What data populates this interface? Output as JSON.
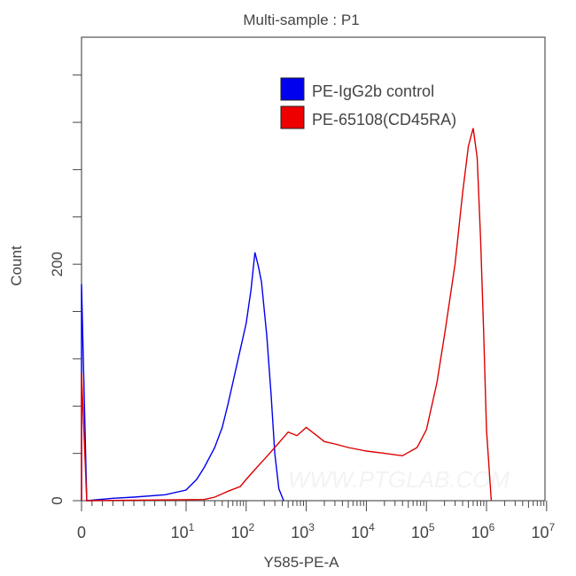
{
  "chart_data": {
    "type": "line",
    "title": "Multi-sample : P1",
    "xlabel": "Y585-PE-A",
    "ylabel": "Count",
    "x_scale": "biexponential (linear near 0, log above 10)",
    "x_ticks": [
      {
        "value": 0,
        "base": "0",
        "exp": ""
      },
      {
        "value": 10,
        "base": "10",
        "exp": "1"
      },
      {
        "value": 100,
        "base": "10",
        "exp": "2"
      },
      {
        "value": 1000,
        "base": "10",
        "exp": "3"
      },
      {
        "value": 10000,
        "base": "10",
        "exp": "4"
      },
      {
        "value": 100000,
        "base": "10",
        "exp": "5"
      },
      {
        "value": 1000000,
        "base": "10",
        "exp": "6"
      },
      {
        "value": 10000000,
        "base": "10",
        "exp": "7"
      }
    ],
    "y_ticks": [
      {
        "value": 0,
        "label": "0"
      },
      {
        "value": 200,
        "label": "200"
      }
    ],
    "ylim": [
      0,
      392
    ],
    "xlim": [
      0,
      10000000
    ],
    "grid": false,
    "legend_position": "top-right",
    "watermark": "WWW.PTGLAB.COM",
    "series": [
      {
        "name": "PE-IgG2b control",
        "color": "#0000ee",
        "points": [
          [
            0,
            183
          ],
          [
            0.5,
            0
          ],
          [
            3,
            2
          ],
          [
            5,
            3
          ],
          [
            8,
            5
          ],
          [
            10,
            9
          ],
          [
            15,
            18
          ],
          [
            20,
            28
          ],
          [
            30,
            45
          ],
          [
            40,
            62
          ],
          [
            50,
            82
          ],
          [
            60,
            100
          ],
          [
            80,
            128
          ],
          [
            100,
            150
          ],
          [
            120,
            178
          ],
          [
            140,
            210
          ],
          [
            160,
            198
          ],
          [
            180,
            185
          ],
          [
            220,
            140
          ],
          [
            260,
            90
          ],
          [
            300,
            40
          ],
          [
            350,
            10
          ],
          [
            420,
            0
          ]
        ]
      },
      {
        "name": "PE-65108(CD45RA)",
        "color": "#dd0000",
        "points": [
          [
            0,
            108
          ],
          [
            0.5,
            0
          ],
          [
            20,
            1
          ],
          [
            30,
            3
          ],
          [
            50,
            8
          ],
          [
            80,
            12
          ],
          [
            100,
            18
          ],
          [
            150,
            28
          ],
          [
            200,
            35
          ],
          [
            300,
            45
          ],
          [
            500,
            58
          ],
          [
            700,
            55
          ],
          [
            1000,
            62
          ],
          [
            1500,
            55
          ],
          [
            2000,
            50
          ],
          [
            3000,
            48
          ],
          [
            5000,
            45
          ],
          [
            10000,
            42
          ],
          [
            20000,
            40
          ],
          [
            40000,
            38
          ],
          [
            70000,
            45
          ],
          [
            100000,
            60
          ],
          [
            150000,
            100
          ],
          [
            200000,
            140
          ],
          [
            300000,
            200
          ],
          [
            400000,
            260
          ],
          [
            500000,
            300
          ],
          [
            600000,
            315
          ],
          [
            700000,
            290
          ],
          [
            800000,
            220
          ],
          [
            900000,
            140
          ],
          [
            1000000,
            60
          ],
          [
            1200000,
            0
          ]
        ]
      }
    ]
  }
}
